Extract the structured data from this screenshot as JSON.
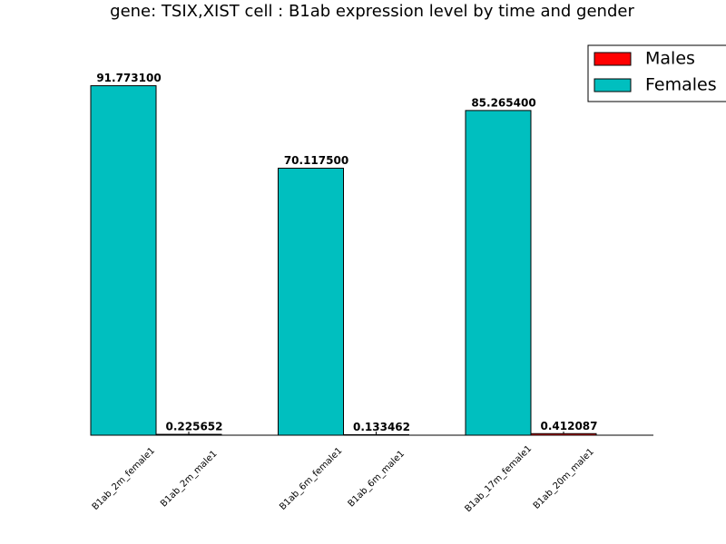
{
  "chart_data": {
    "type": "bar",
    "title": "gene: TSIX,XIST cell : B1ab expression level by time and gender",
    "categories": [
      "B1ab_2m_female1",
      "B1ab_2m_male1",
      "B1ab_6m_female1",
      "B1ab_6m_male1",
      "B1ab_17m_female1",
      "B1ab_20m_male1"
    ],
    "series": [
      {
        "name": "Males",
        "color": "#ff0000",
        "values": [
          null,
          0.225652,
          null,
          0.133462,
          null,
          0.412087
        ],
        "value_labels": [
          null,
          "0.225652",
          null,
          "0.133462",
          null,
          "0.412087"
        ]
      },
      {
        "name": "Females",
        "color": "#00bfbf",
        "values": [
          91.7731,
          null,
          70.1175,
          null,
          85.2654,
          null
        ],
        "value_labels": [
          "91.773100",
          null,
          "70.117500",
          null,
          "85.265400",
          null
        ]
      }
    ],
    "ylim": [
      0,
      100
    ],
    "legend": "upper right"
  }
}
